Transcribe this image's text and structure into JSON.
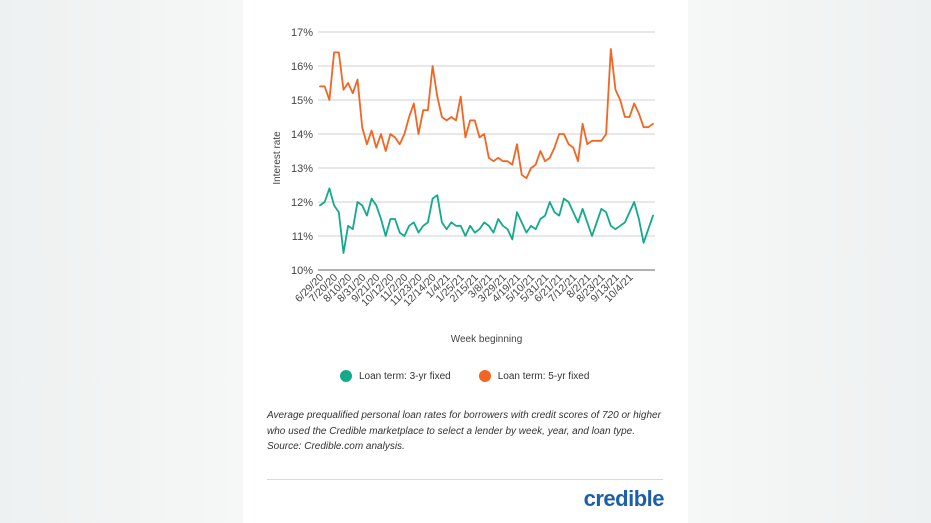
{
  "chart_data": {
    "type": "line",
    "xlabel": "Week beginning",
    "ylabel": "Interest rate",
    "ylim": [
      10,
      17
    ],
    "yticks": [
      "10%",
      "11%",
      "12%",
      "13%",
      "14%",
      "15%",
      "16%",
      "17%"
    ],
    "x_tick_labels": [
      "6/29/20",
      "7/20/20",
      "8/10/20",
      "8/31/20",
      "9/21/20",
      "10/12/20",
      "11/2/20",
      "11/23/20",
      "12/14/20",
      "1/4/21",
      "1/25/21",
      "2/15/21",
      "3/8/21",
      "3/29/21",
      "4/19/21",
      "5/10/21",
      "5/31/21",
      "6/21/21",
      "7/12/21",
      "8/2/21",
      "8/23/21",
      "9/13/21",
      "10/4/21"
    ],
    "x_tick_positions": [
      0,
      3,
      6,
      9,
      12,
      15,
      18,
      21,
      24,
      27,
      30,
      33,
      36,
      39,
      42,
      45,
      48,
      51,
      54,
      57,
      60,
      63,
      66
    ],
    "grid": "horizontal",
    "series": [
      {
        "name": "Loan term: 3-yr fixed",
        "color": "#13a98b",
        "values": [
          11.9,
          12.0,
          12.4,
          11.9,
          11.7,
          10.5,
          11.3,
          11.2,
          12.0,
          11.9,
          11.6,
          12.1,
          11.9,
          11.5,
          11.0,
          11.5,
          11.5,
          11.1,
          11.0,
          11.3,
          11.4,
          11.1,
          11.3,
          11.4,
          12.1,
          12.2,
          11.4,
          11.2,
          11.4,
          11.3,
          11.3,
          11.0,
          11.3,
          11.1,
          11.2,
          11.4,
          11.3,
          11.1,
          11.5,
          11.3,
          11.2,
          10.9,
          11.7,
          11.4,
          11.1,
          11.3,
          11.2,
          11.5,
          11.6,
          12.0,
          11.7,
          11.6,
          12.1,
          12.0,
          11.7,
          11.4,
          11.8,
          11.4,
          11.0,
          11.4,
          11.8,
          11.7,
          11.3,
          11.2,
          11.3,
          11.4,
          11.7,
          12.0,
          11.5,
          10.8,
          11.2,
          11.6
        ],
        "connect_first": true
      },
      {
        "name": "Loan term: 5-yr fixed",
        "color": "#f26522",
        "values": [
          15.4,
          15.4,
          15.0,
          16.4,
          16.4,
          15.3,
          15.5,
          15.2,
          15.6,
          14.2,
          13.7,
          14.1,
          13.6,
          14.0,
          13.5,
          14.0,
          13.9,
          13.7,
          14.0,
          14.5,
          14.9,
          14.0,
          14.7,
          14.7,
          16.0,
          15.1,
          14.5,
          14.4,
          14.5,
          14.4,
          15.1,
          13.9,
          14.4,
          14.4,
          13.9,
          14.0,
          13.3,
          13.2,
          13.3,
          13.2,
          13.2,
          13.1,
          13.7,
          12.8,
          12.7,
          13.0,
          13.1,
          13.5,
          13.2,
          13.3,
          13.6,
          14.0,
          14.0,
          13.7,
          13.6,
          13.2,
          14.3,
          13.7,
          13.8,
          13.8,
          13.8,
          14.0,
          16.5,
          15.3,
          15.0,
          14.5,
          14.5,
          14.9,
          14.6,
          14.2,
          14.2,
          14.3
        ]
      }
    ]
  },
  "caption": "Average prequalified personal loan rates for borrowers with credit scores of 720 or higher who used the Credible marketplace to select a lender by week, year, and loan type. Source: Credible.com analysis.",
  "logo_text": "credible"
}
